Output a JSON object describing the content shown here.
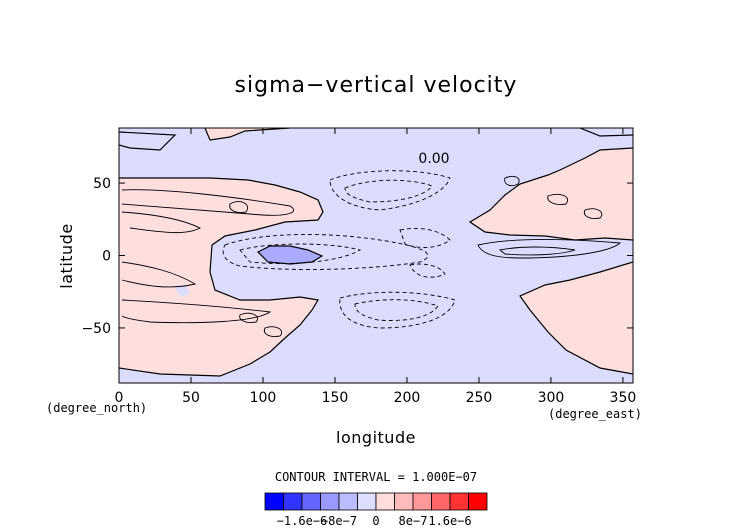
{
  "chart_data": {
    "type": "heatmap",
    "title": "sigma−vertical velocity",
    "xlabel": "longitude",
    "ylabel": "latitude",
    "x_units": "(degree_east)",
    "y_units": "(degree_north)",
    "xlim": [
      0,
      357
    ],
    "ylim": [
      -88,
      88
    ],
    "x_ticks": [
      0,
      50,
      100,
      150,
      200,
      250,
      300,
      350
    ],
    "y_ticks": [
      -50,
      0,
      50
    ],
    "contour_label": "0.00",
    "contour_interval_text": "CONTOUR INTERVAL = 1.000E−07",
    "colorbar": {
      "colors": [
        "#0000ff",
        "#3333ff",
        "#6666ff",
        "#9999ff",
        "#bbbbff",
        "#ddddff",
        "#ffdddd",
        "#ffbbbb",
        "#ff9999",
        "#ff6666",
        "#ff3333",
        "#ff0000"
      ],
      "tick_labels": [
        "−1.6e−6",
        "−8e−7",
        "0",
        "8e−7",
        "1.6e−6"
      ],
      "tick_values": [
        -1.6e-06,
        -8e-07,
        0,
        8e-07,
        1.6e-06
      ]
    },
    "field": {
      "background": "#ffdede",
      "negative": "#dcdcff",
      "strong_negative": "#aaaaff",
      "contour_color": "#000000"
    }
  }
}
